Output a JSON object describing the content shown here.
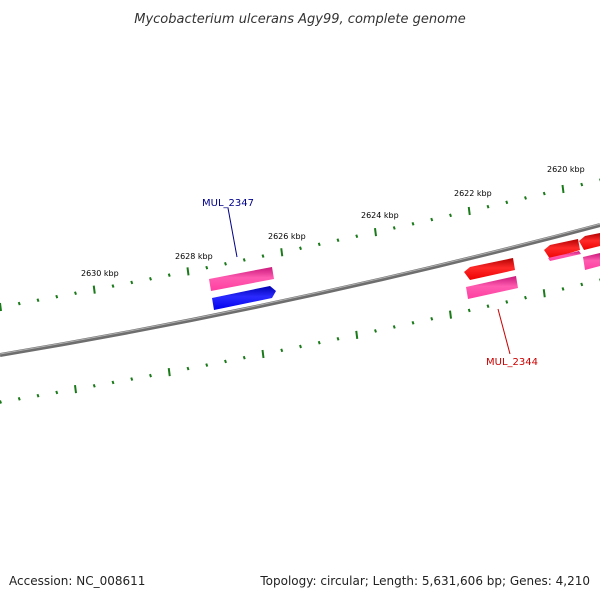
{
  "title": "Mycobacterium ulcerans Agy99, complete genome",
  "footer": {
    "accession": "Accession: NC_008611",
    "summary": "Topology: circular; Length: 5,631,606 bp; Genes: 4,210"
  },
  "scale_labels": [
    "2630 kbp",
    "2628 kbp",
    "2626 kbp",
    "2624 kbp",
    "2622 kbp",
    "2620 kbp"
  ],
  "gene_labels": {
    "upper": "MUL_2347",
    "lower": "MUL_2344"
  },
  "colors": {
    "backbone": "#808080",
    "ticks": "#1a7a1a",
    "forward_gene": "#0000ff",
    "reverse_gene": "#ff0000",
    "feature_pink": "#ff3ea0",
    "upper_label": "#00008b",
    "lower_label": "#cc0000"
  }
}
